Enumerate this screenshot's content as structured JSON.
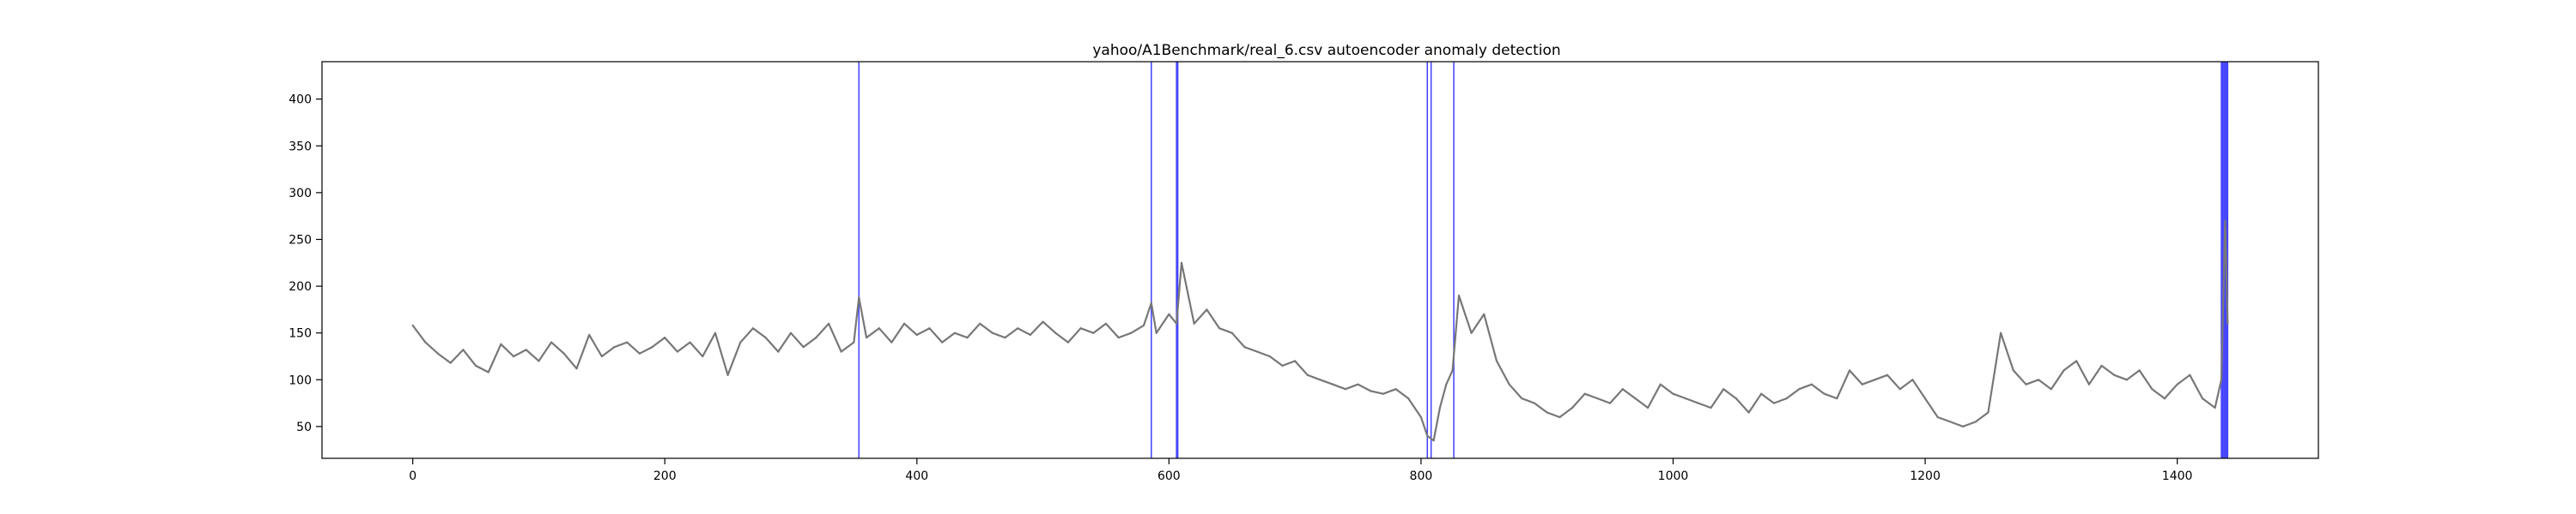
{
  "chart_data": {
    "type": "line",
    "title": "yahoo/A1Benchmark/real_6.csv autoencoder anomaly detection",
    "xlabel": "",
    "ylabel": "",
    "xlim": [
      -72,
      1512
    ],
    "ylim": [
      16,
      440
    ],
    "x_ticks": [
      0,
      200,
      400,
      600,
      800,
      1000,
      1200,
      1400
    ],
    "y_ticks": [
      50,
      100,
      150,
      200,
      250,
      300,
      350,
      400
    ],
    "grid": false,
    "legend": "none",
    "series": [
      {
        "color": "#777777",
        "x": [
          0,
          10,
          20,
          30,
          40,
          50,
          60,
          70,
          80,
          90,
          100,
          110,
          120,
          130,
          140,
          150,
          160,
          170,
          180,
          190,
          200,
          210,
          220,
          230,
          240,
          250,
          260,
          270,
          280,
          290,
          300,
          310,
          320,
          330,
          340,
          350,
          354,
          360,
          370,
          380,
          390,
          400,
          410,
          420,
          430,
          440,
          450,
          460,
          470,
          480,
          490,
          500,
          510,
          520,
          530,
          540,
          550,
          560,
          570,
          580,
          586,
          590,
          600,
          606,
          610,
          620,
          630,
          640,
          650,
          660,
          670,
          680,
          690,
          700,
          710,
          720,
          730,
          740,
          750,
          760,
          770,
          780,
          790,
          800,
          805,
          810,
          815,
          820,
          825,
          830,
          840,
          850,
          860,
          870,
          880,
          890,
          900,
          910,
          920,
          930,
          940,
          950,
          960,
          970,
          980,
          990,
          1000,
          1010,
          1020,
          1030,
          1040,
          1050,
          1060,
          1070,
          1080,
          1090,
          1100,
          1110,
          1120,
          1130,
          1140,
          1150,
          1160,
          1170,
          1180,
          1190,
          1200,
          1210,
          1220,
          1230,
          1240,
          1250,
          1260,
          1270,
          1280,
          1290,
          1300,
          1310,
          1320,
          1330,
          1340,
          1350,
          1360,
          1370,
          1380,
          1390,
          1400,
          1410,
          1420,
          1430,
          1435,
          1438,
          1440
        ],
        "y": [
          158,
          140,
          128,
          118,
          132,
          115,
          108,
          138,
          125,
          132,
          120,
          140,
          128,
          112,
          148,
          125,
          135,
          140,
          128,
          135,
          145,
          130,
          140,
          125,
          150,
          105,
          140,
          155,
          145,
          130,
          150,
          135,
          145,
          160,
          130,
          140,
          188,
          145,
          155,
          140,
          160,
          148,
          155,
          140,
          150,
          145,
          160,
          150,
          145,
          155,
          148,
          162,
          150,
          140,
          155,
          150,
          160,
          145,
          150,
          158,
          182,
          150,
          170,
          160,
          225,
          160,
          175,
          155,
          150,
          135,
          130,
          125,
          115,
          120,
          105,
          100,
          95,
          90,
          95,
          88,
          85,
          90,
          80,
          60,
          40,
          35,
          70,
          95,
          110,
          190,
          150,
          170,
          120,
          95,
          80,
          75,
          65,
          60,
          70,
          85,
          80,
          75,
          90,
          80,
          70,
          95,
          85,
          80,
          75,
          70,
          90,
          80,
          65,
          85,
          75,
          80,
          90,
          95,
          85,
          80,
          110,
          95,
          100,
          105,
          90,
          100,
          80,
          60,
          55,
          50,
          55,
          65,
          150,
          110,
          95,
          100,
          90,
          110,
          120,
          95,
          115,
          105,
          100,
          110,
          90,
          80,
          95,
          105,
          80,
          70,
          100,
          270,
          160
        ]
      }
    ],
    "anomalies": {
      "color": "#0000ff",
      "x": [
        354,
        586,
        606,
        607,
        805,
        808,
        826,
        1435,
        1436,
        1437,
        1438,
        1439,
        1440
      ]
    }
  }
}
